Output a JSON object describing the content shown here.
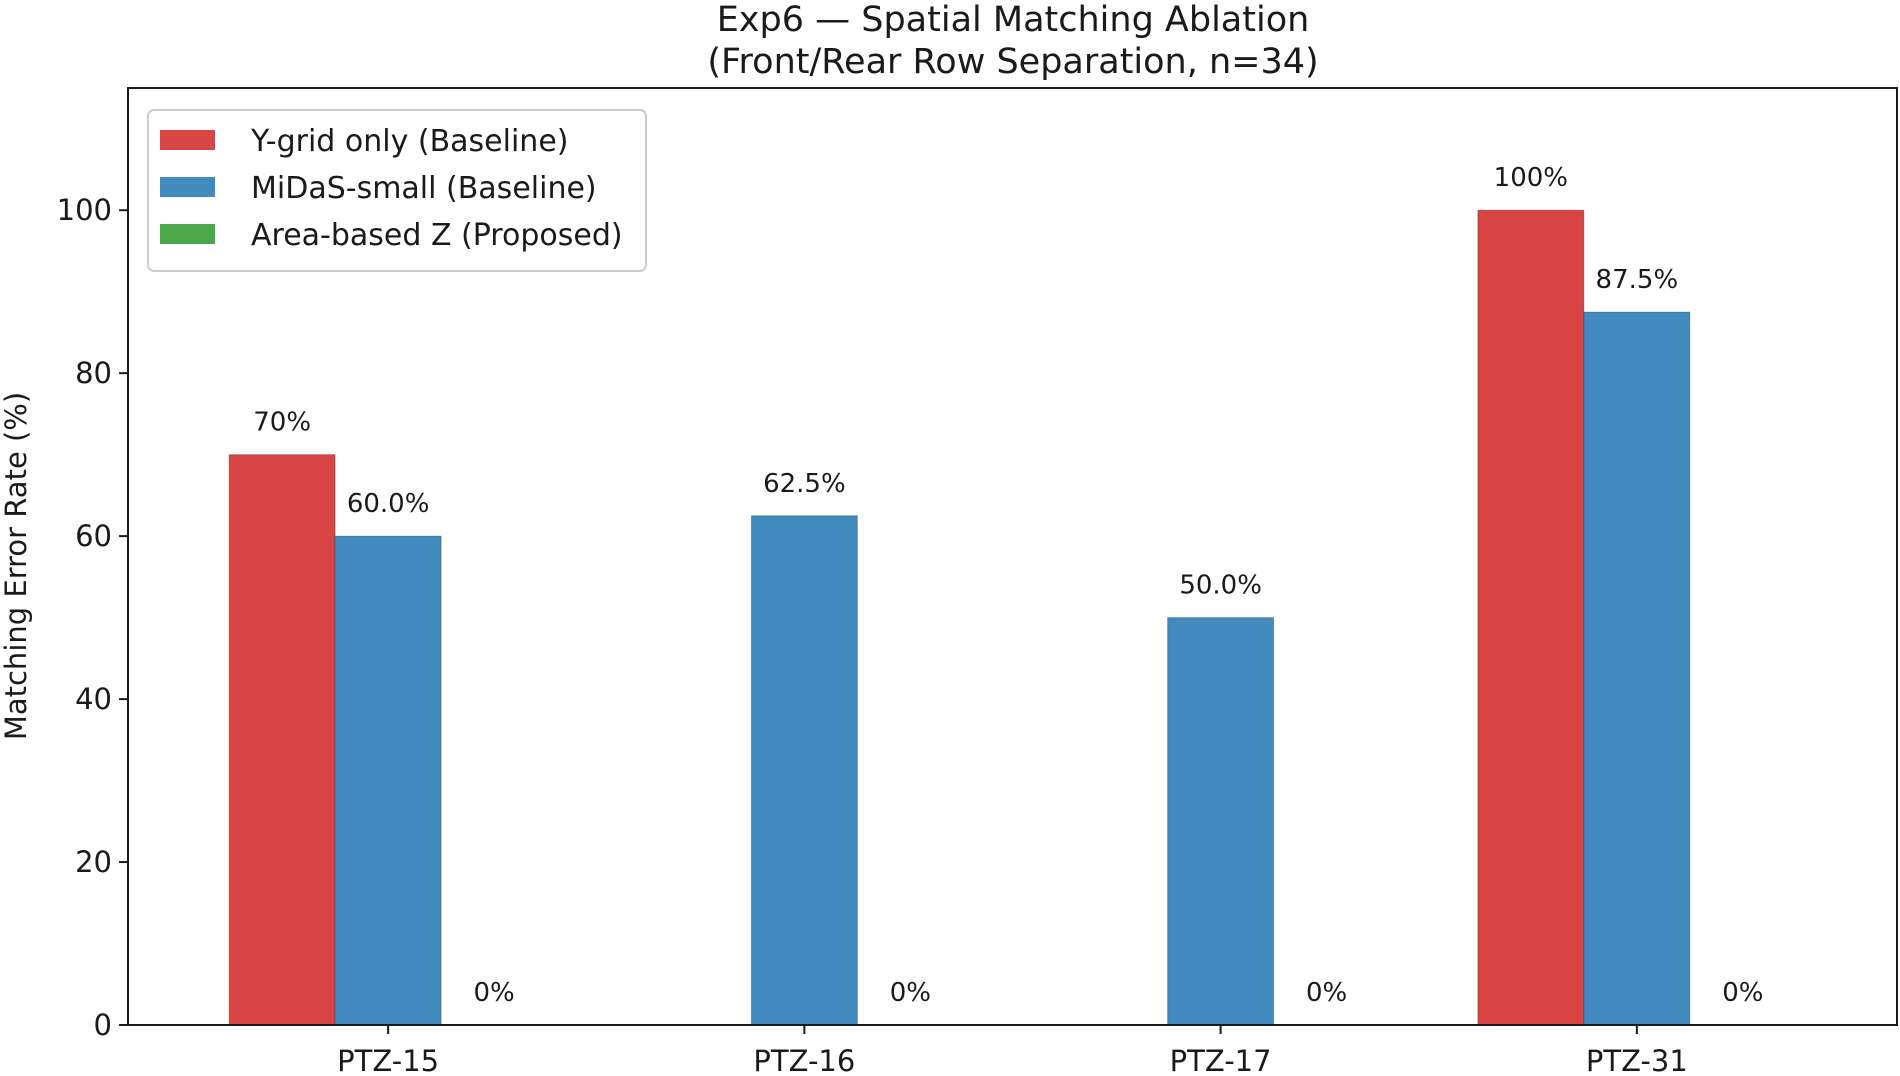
{
  "chart_data": {
    "type": "bar",
    "title": "Exp6 — Spatial Matching Ablation",
    "subtitle": "(Front/Rear Row Separation, n=34)",
    "xlabel": "",
    "ylabel": "Matching Error Rate (%)",
    "ylim": [
      0,
      115
    ],
    "yticks": [
      0,
      20,
      40,
      60,
      80,
      100
    ],
    "categories": [
      "PTZ-15",
      "PTZ-16",
      "PTZ-17",
      "PTZ-31"
    ],
    "series": [
      {
        "name": "Y-grid only (Baseline)",
        "color": "#d94545",
        "values": [
          70,
          0,
          0,
          100
        ],
        "labels": [
          "70%",
          "",
          "",
          "100%"
        ]
      },
      {
        "name": "MiDaS-small (Baseline)",
        "color": "#428bbf",
        "values": [
          60.0,
          62.5,
          50.0,
          87.5
        ],
        "labels": [
          "60.0%",
          "62.5%",
          "50.0%",
          "87.5%"
        ]
      },
      {
        "name": "Area-based Z (Proposed)",
        "color": "#4aa84a",
        "values": [
          0,
          0,
          0,
          0
        ],
        "labels": [
          "0%",
          "0%",
          "0%",
          "0%"
        ]
      }
    ],
    "grid": false,
    "legend_position": "top-left"
  }
}
